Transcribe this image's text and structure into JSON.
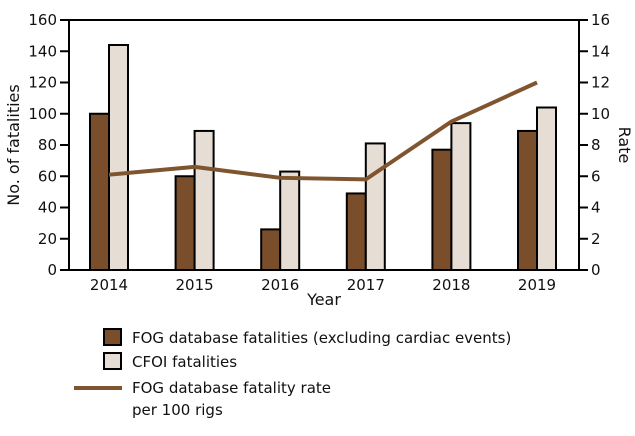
{
  "chart_data": {
    "type": "bar",
    "categories": [
      "2014",
      "2015",
      "2016",
      "2017",
      "2018",
      "2019"
    ],
    "xlabel": "Year",
    "ylabel": "No. of fatalities",
    "ylabel_right": "Rate",
    "ylim": [
      0,
      160
    ],
    "yticks": [
      0,
      20,
      40,
      60,
      80,
      100,
      120,
      140,
      160
    ],
    "ylim_right": [
      0,
      16
    ],
    "yticks_right": [
      0,
      2,
      4,
      6,
      8,
      10,
      12,
      14,
      16
    ],
    "grid": false,
    "legend_placement": "bottom",
    "series": [
      {
        "name": "FOG database fatalities (excluding cardiac events)",
        "type": "bar",
        "axis": "left",
        "color": "#7a4e2a",
        "values": [
          100,
          60,
          26,
          49,
          77,
          89
        ]
      },
      {
        "name": "CFOI fatalities",
        "type": "bar",
        "axis": "left",
        "color": "#e6ddd5",
        "values": [
          144,
          89,
          63,
          81,
          94,
          104
        ]
      },
      {
        "name": "FOG database fatality rate per 100 rigs",
        "name_lines": [
          "FOG database fatality rate",
          "per 100 rigs"
        ],
        "type": "line",
        "axis": "right",
        "color": "#7f552f",
        "values": [
          6.1,
          6.6,
          5.9,
          5.8,
          9.5,
          12.0
        ]
      }
    ]
  }
}
